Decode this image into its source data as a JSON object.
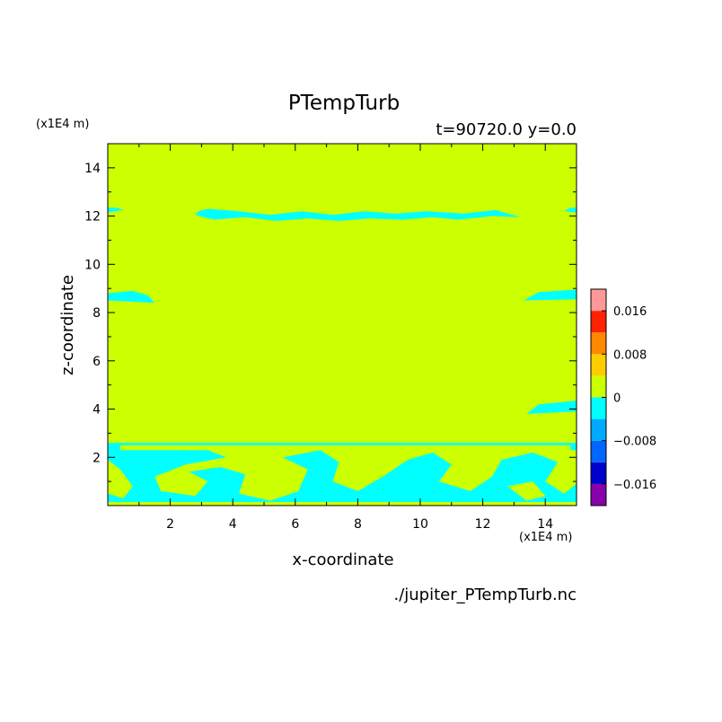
{
  "chart_data": {
    "type": "heatmap",
    "title": "PTempTurb",
    "subtitle": "t=90720.0 y=0.0",
    "xlabel": "x-coordinate",
    "ylabel": "z-coordinate",
    "x_scale_label": "(x1E4 m)",
    "y_scale_label": "(x1E4 m)",
    "xlim": [
      0,
      15
    ],
    "ylim": [
      0,
      15
    ],
    "x_ticks": [
      2,
      4,
      6,
      8,
      10,
      12,
      14
    ],
    "y_ticks": [
      2,
      4,
      6,
      8,
      10,
      12,
      14
    ],
    "x_tick_labels": [
      "2",
      "4",
      "6",
      "8",
      "10",
      "12",
      "14"
    ],
    "y_tick_labels": [
      "2",
      "4",
      "6",
      "8",
      "10",
      "12",
      "14"
    ],
    "background_level_color": "#ccff00",
    "negative_level_color": "#00ffff",
    "colorbar": {
      "bounds": [
        -0.02,
        -0.016,
        -0.012,
        -0.008,
        -0.004,
        0.0,
        0.004,
        0.008,
        0.012,
        0.016,
        0.02
      ],
      "colors": [
        "#8800aa",
        "#0000cc",
        "#0066ff",
        "#00aaff",
        "#00ffff",
        "#ccff00",
        "#ffcc00",
        "#ff8800",
        "#ff2200",
        "#ff9999"
      ],
      "tick_values": [
        0.016,
        0.008,
        0,
        -0.008,
        -0.016
      ],
      "tick_labels": [
        "0.016",
        "0.008",
        "0",
        "-0.008",
        "-0.016"
      ]
    },
    "negative_regions_description_free": true,
    "regions": [
      {
        "level": -0.004,
        "points": [
          [
            0,
            2.6
          ],
          [
            15,
            2.6
          ],
          [
            15,
            0
          ],
          [
            0,
            0
          ]
        ]
      },
      {
        "level": 0.002,
        "points": [
          [
            0.4,
            2.3
          ],
          [
            3.2,
            2.3
          ],
          [
            3.8,
            2.0
          ],
          [
            2.5,
            1.7
          ],
          [
            1.5,
            1.2
          ],
          [
            1.7,
            0.6
          ],
          [
            2.8,
            0.4
          ],
          [
            3.2,
            1.0
          ],
          [
            2.6,
            1.4
          ],
          [
            3.6,
            1.6
          ],
          [
            4.4,
            1.3
          ],
          [
            4.2,
            0.5
          ],
          [
            5.2,
            0.2
          ],
          [
            6.1,
            0.6
          ],
          [
            6.4,
            1.5
          ],
          [
            5.6,
            2.0
          ],
          [
            6.8,
            2.3
          ],
          [
            7.4,
            1.8
          ],
          [
            7.2,
            1.0
          ],
          [
            8.0,
            0.6
          ],
          [
            8.8,
            1.2
          ],
          [
            9.6,
            1.9
          ],
          [
            10.4,
            2.2
          ],
          [
            11.0,
            1.7
          ],
          [
            10.6,
            1.0
          ],
          [
            11.6,
            0.6
          ],
          [
            12.3,
            1.2
          ],
          [
            12.6,
            1.9
          ],
          [
            13.6,
            2.2
          ],
          [
            14.4,
            1.8
          ],
          [
            14.0,
            1.0
          ],
          [
            14.6,
            0.5
          ],
          [
            15,
            0.9
          ],
          [
            15,
            2.3
          ],
          [
            14.8,
            2.3
          ],
          [
            14.8,
            2.5
          ],
          [
            0.4,
            2.5
          ]
        ]
      },
      {
        "level": 0.002,
        "points": [
          [
            0,
            1.9
          ],
          [
            0.4,
            1.5
          ],
          [
            0.8,
            0.8
          ],
          [
            0.5,
            0.3
          ],
          [
            0,
            0.5
          ]
        ]
      },
      {
        "level": 0.002,
        "points": [
          [
            7.8,
            2.2
          ],
          [
            8.6,
            1.7
          ],
          [
            8.3,
            1.3
          ],
          [
            7.6,
            1.7
          ]
        ]
      },
      {
        "level": 0.002,
        "points": [
          [
            12.8,
            0.8
          ],
          [
            13.4,
            0.2
          ],
          [
            14.0,
            0.4
          ],
          [
            13.6,
            1.0
          ]
        ]
      },
      {
        "level": 0.002,
        "points": [
          [
            0,
            0.15
          ],
          [
            15,
            0.15
          ],
          [
            15,
            0
          ],
          [
            0,
            0
          ]
        ]
      },
      {
        "level": -0.004,
        "points": [
          [
            2.8,
            12.05
          ],
          [
            3.4,
            11.85
          ],
          [
            4.4,
            11.95
          ],
          [
            5.4,
            11.8
          ],
          [
            6.4,
            11.9
          ],
          [
            7.4,
            11.8
          ],
          [
            8.4,
            11.9
          ],
          [
            9.4,
            11.85
          ],
          [
            10.4,
            11.95
          ],
          [
            11.2,
            11.85
          ],
          [
            12.3,
            12.0
          ],
          [
            13.2,
            11.95
          ],
          [
            12.4,
            12.25
          ],
          [
            11.4,
            12.1
          ],
          [
            10.2,
            12.2
          ],
          [
            9.2,
            12.1
          ],
          [
            8.2,
            12.2
          ],
          [
            7.2,
            12.05
          ],
          [
            6.2,
            12.2
          ],
          [
            5.2,
            12.05
          ],
          [
            4.2,
            12.2
          ],
          [
            3.2,
            12.3
          ],
          [
            2.9,
            12.2
          ]
        ]
      },
      {
        "level": -0.004,
        "points": [
          [
            0,
            12.15
          ],
          [
            0.5,
            12.25
          ],
          [
            0.3,
            12.35
          ],
          [
            0,
            12.35
          ]
        ]
      },
      {
        "level": -0.004,
        "points": [
          [
            15,
            12.15
          ],
          [
            14.6,
            12.2
          ],
          [
            14.8,
            12.35
          ],
          [
            15,
            12.35
          ]
        ]
      },
      {
        "level": -0.004,
        "points": [
          [
            0,
            8.5
          ],
          [
            1.5,
            8.4
          ],
          [
            1.3,
            8.7
          ],
          [
            0.8,
            8.9
          ],
          [
            0,
            8.8
          ]
        ]
      },
      {
        "level": -0.004,
        "points": [
          [
            15,
            8.55
          ],
          [
            13.3,
            8.5
          ],
          [
            13.8,
            8.85
          ],
          [
            15,
            8.95
          ]
        ]
      },
      {
        "level": -0.004,
        "points": [
          [
            15,
            3.9
          ],
          [
            13.4,
            3.8
          ],
          [
            13.8,
            4.2
          ],
          [
            15,
            4.35
          ]
        ]
      }
    ]
  },
  "footer": {
    "filename": "./jupiter_PTempTurb.nc",
    "x_scale_label": "(x1E4 m)"
  }
}
